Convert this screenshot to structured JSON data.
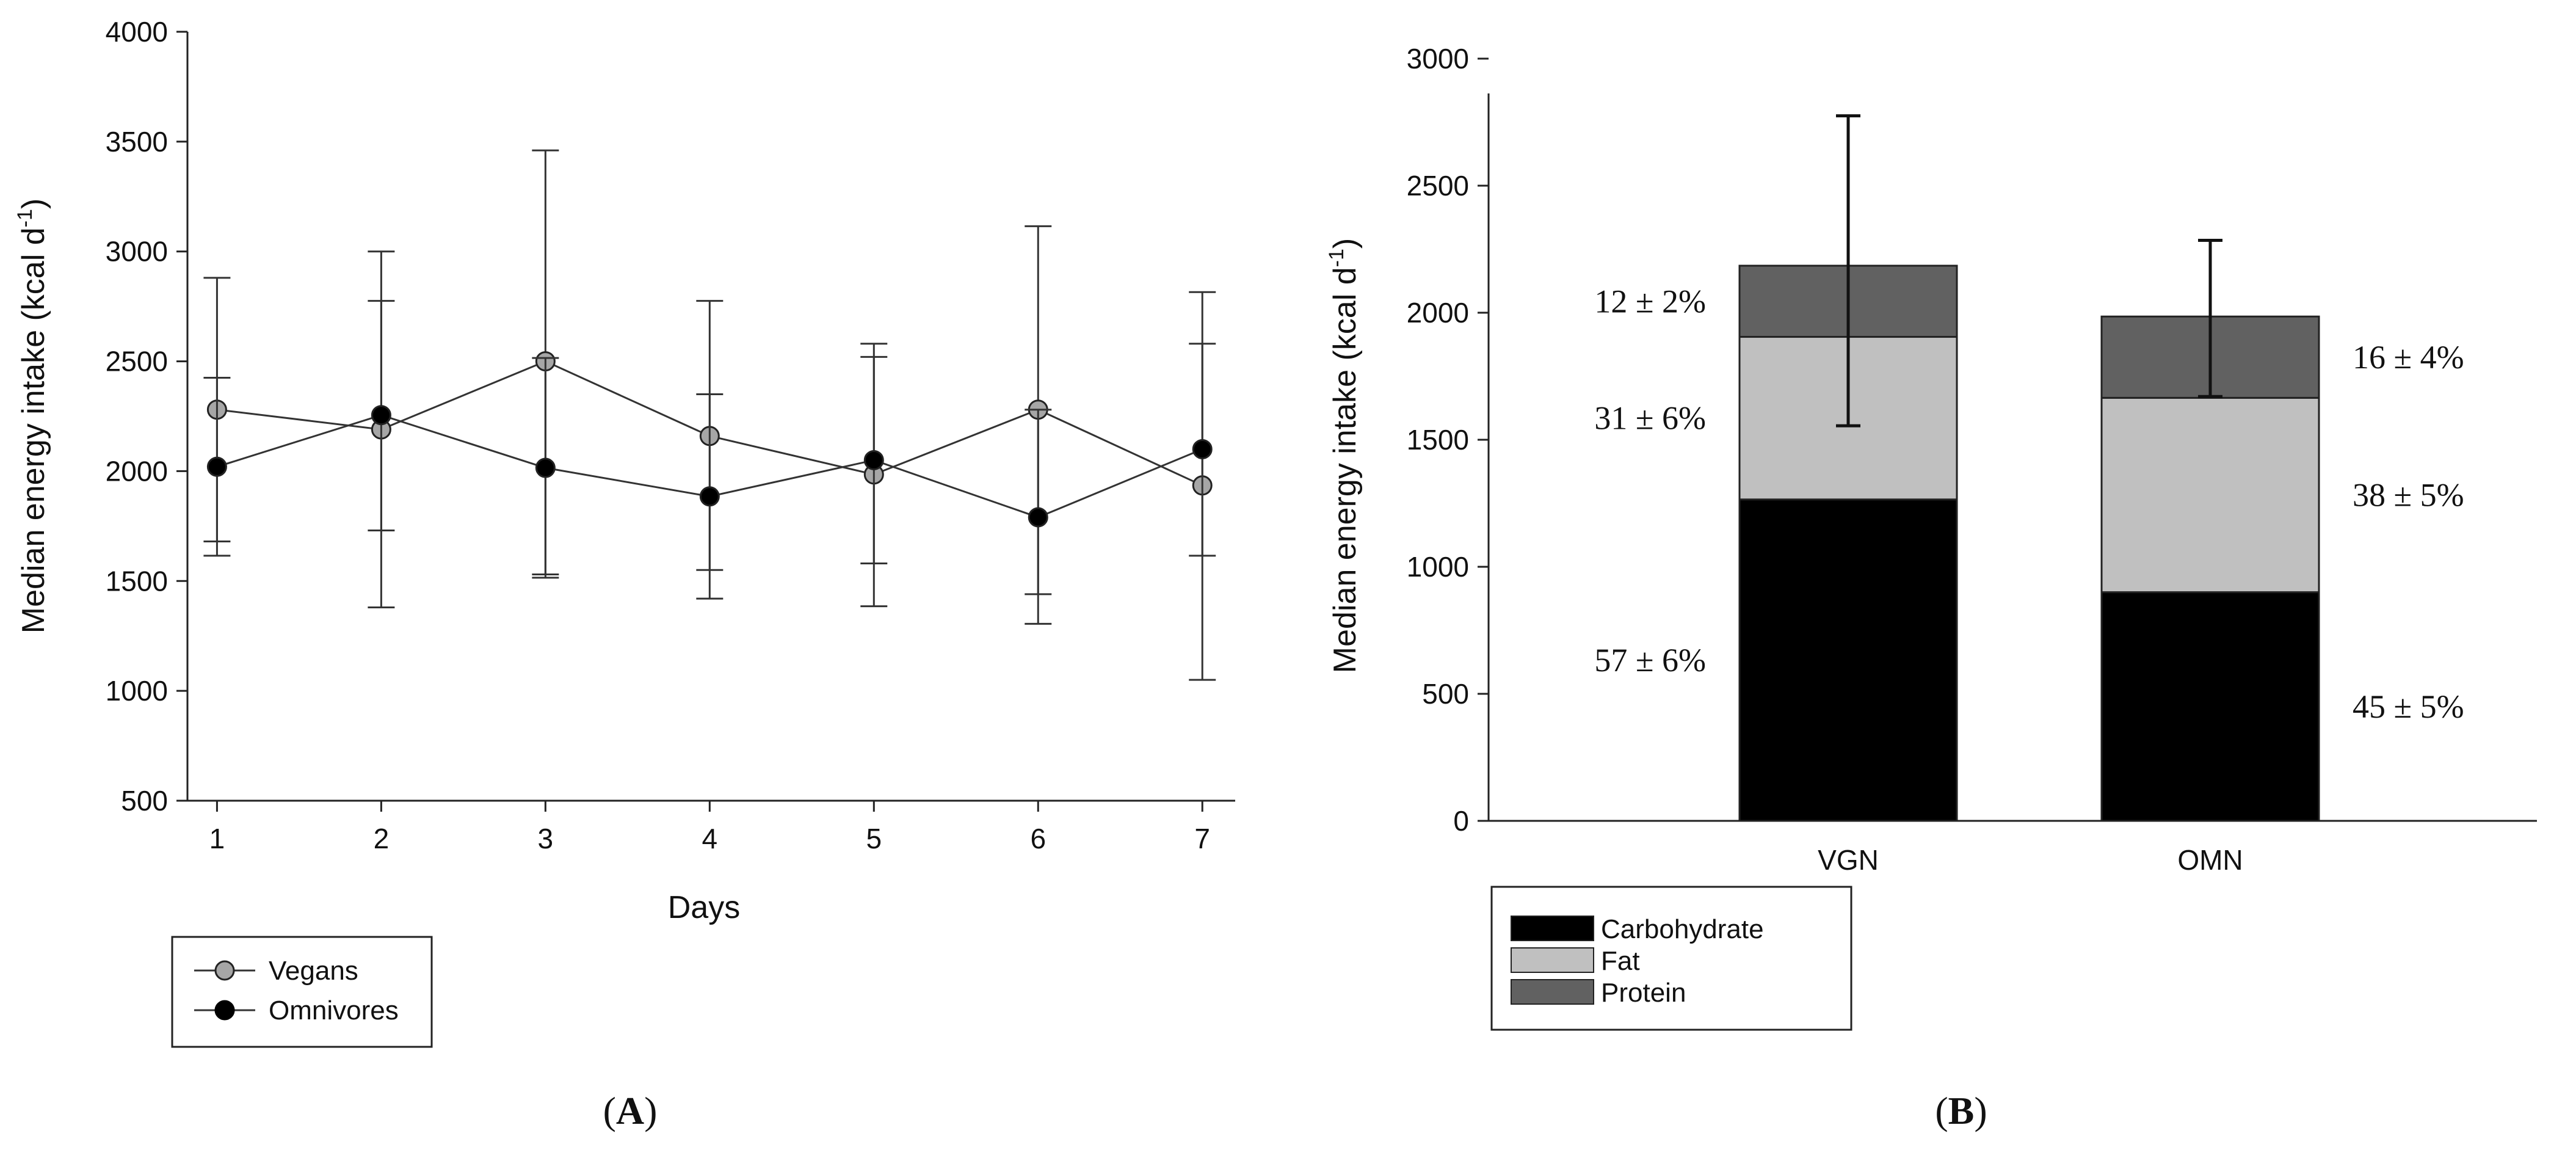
{
  "chart_data": [
    {
      "type": "line",
      "panel_label": {
        "open": "(",
        "letter": "A",
        "close": ")"
      },
      "xlabel": "Days",
      "ylabel": "Median energy intake (kcal d",
      "ylabel_sup": "-1",
      "ylabel_close": ")",
      "x": [
        1,
        2,
        3,
        4,
        5,
        6,
        7
      ],
      "xticks": [
        "1",
        "2",
        "3",
        "4",
        "5",
        "6",
        "7"
      ],
      "ylim": [
        500,
        4000
      ],
      "yticks": [
        "500",
        "1000",
        "1500",
        "2000",
        "2500",
        "3000",
        "3500",
        "4000"
      ],
      "grid": false,
      "legend_position": "bottom-left",
      "series": [
        {
          "name": "Vegans",
          "marker_color": "#a6a6a6",
          "values": [
            2280,
            2190,
            2500,
            2160,
            1985,
            2280,
            1935
          ],
          "err_low": [
            1680,
            1380,
            1530,
            1550,
            1580,
            1440,
            1050
          ],
          "err_high": [
            2880,
            3000,
            3460,
            2775,
            2580,
            3115,
            2815
          ]
        },
        {
          "name": "Omnivores",
          "marker_color": "#000000",
          "values": [
            2020,
            2255,
            2015,
            1885,
            2050,
            1790,
            2100
          ],
          "err_low": [
            1615,
            1730,
            1515,
            1420,
            1385,
            1305,
            1615
          ],
          "err_high": [
            2425,
            2775,
            2515,
            2350,
            2520,
            2280,
            2580
          ]
        }
      ]
    },
    {
      "type": "bar",
      "stacked": true,
      "panel_label": {
        "open": "(",
        "letter": "B",
        "close": ")"
      },
      "xlabel": "",
      "ylabel": "Median energy intake (kcal d",
      "ylabel_sup": "-1",
      "ylabel_close": ")",
      "categories": [
        "VGN",
        "OMN"
      ],
      "ylim": [
        0,
        3000
      ],
      "yticks": [
        "0",
        "500",
        "1000",
        "1500",
        "2000",
        "2500",
        "3000"
      ],
      "grid": false,
      "legend_position": "bottom-left",
      "series": [
        {
          "name": "Carbohydrate",
          "color": "#000000",
          "values": [
            1265,
            900
          ],
          "labels": [
            "57 ± 6%",
            "45 ± 5%"
          ]
        },
        {
          "name": "Fat",
          "color": "#c0c0c0",
          "values": [
            640,
            765
          ],
          "labels": [
            "31 ± 6%",
            "38 ± 5%"
          ]
        },
        {
          "name": "Protein",
          "color": "#616161",
          "values": [
            280,
            320
          ],
          "labels": [
            "12 ± 2%",
            "16 ± 4%"
          ]
        }
      ],
      "totals": [
        2185,
        1985
      ],
      "err_low": [
        1555,
        1670
      ],
      "err_high": [
        2775,
        2285
      ]
    }
  ]
}
